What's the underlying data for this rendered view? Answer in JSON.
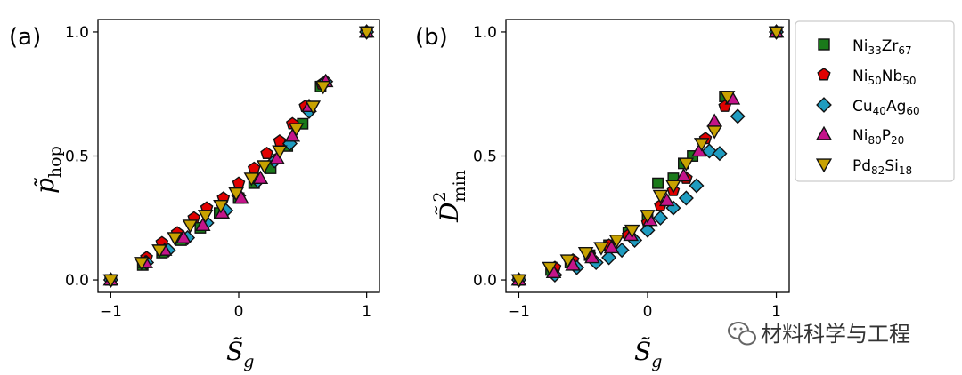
{
  "chart_data": [
    {
      "type": "scatter",
      "panel_label": "(a)",
      "xlabel": "S̃",
      "xlabel_sub": "g",
      "ylabel": "p̃",
      "ylabel_sub": "hop",
      "xlim": [
        -1.1,
        1.1
      ],
      "ylim": [
        -0.05,
        1.05
      ],
      "xticks": [
        "-1",
        "0",
        "1"
      ],
      "yticks": [
        "0.0",
        "0.5",
        "1.0"
      ],
      "series": [
        {
          "name": "Ni33Zr67",
          "marker": "square",
          "color": "#1a7a1a",
          "points": [
            [
              -1.0,
              0.0
            ],
            [
              -0.75,
              0.06
            ],
            [
              -0.6,
              0.11
            ],
            [
              -0.45,
              0.16
            ],
            [
              -0.3,
              0.21
            ],
            [
              -0.15,
              0.27
            ],
            [
              0.0,
              0.33
            ],
            [
              0.12,
              0.39
            ],
            [
              0.25,
              0.45
            ],
            [
              0.38,
              0.54
            ],
            [
              0.5,
              0.63
            ],
            [
              0.64,
              0.78
            ],
            [
              1.0,
              1.0
            ]
          ]
        },
        {
          "name": "Ni50Nb50",
          "marker": "pentagon",
          "color": "#e00000",
          "points": [
            [
              -1.0,
              0.0
            ],
            [
              -0.72,
              0.09
            ],
            [
              -0.6,
              0.15
            ],
            [
              -0.48,
              0.19
            ],
            [
              -0.35,
              0.25
            ],
            [
              -0.25,
              0.29
            ],
            [
              -0.12,
              0.33
            ],
            [
              0.0,
              0.39
            ],
            [
              0.12,
              0.45
            ],
            [
              0.22,
              0.51
            ],
            [
              0.32,
              0.56
            ],
            [
              0.42,
              0.63
            ],
            [
              0.52,
              0.7
            ],
            [
              0.65,
              0.79
            ],
            [
              1.0,
              1.0
            ]
          ]
        },
        {
          "name": "Cu40Ag60",
          "marker": "diamond",
          "color": "#1f9cc0",
          "points": [
            [
              -1.0,
              0.0
            ],
            [
              -0.72,
              0.07
            ],
            [
              -0.55,
              0.12
            ],
            [
              -0.4,
              0.17
            ],
            [
              -0.25,
              0.23
            ],
            [
              -0.1,
              0.28
            ],
            [
              0.0,
              0.34
            ],
            [
              0.15,
              0.4
            ],
            [
              0.28,
              0.48
            ],
            [
              0.4,
              0.55
            ],
            [
              0.55,
              0.68
            ],
            [
              0.68,
              0.8
            ],
            [
              1.0,
              1.0
            ]
          ]
        },
        {
          "name": "Ni80P20",
          "marker": "triangle-up",
          "color": "#c4148a",
          "points": [
            [
              -1.0,
              0.0
            ],
            [
              -0.73,
              0.07
            ],
            [
              -0.58,
              0.12
            ],
            [
              -0.43,
              0.17
            ],
            [
              -0.28,
              0.22
            ],
            [
              -0.13,
              0.27
            ],
            [
              0.02,
              0.33
            ],
            [
              0.17,
              0.41
            ],
            [
              0.3,
              0.49
            ],
            [
              0.42,
              0.58
            ],
            [
              0.55,
              0.7
            ],
            [
              0.68,
              0.8
            ],
            [
              1.0,
              1.0
            ]
          ]
        },
        {
          "name": "Pd82Si18",
          "marker": "triangle-down",
          "color": "#c8a200",
          "points": [
            [
              -1.0,
              0.0
            ],
            [
              -0.76,
              0.07
            ],
            [
              -0.62,
              0.12
            ],
            [
              -0.5,
              0.17
            ],
            [
              -0.38,
              0.22
            ],
            [
              -0.26,
              0.26
            ],
            [
              -0.14,
              0.3
            ],
            [
              -0.02,
              0.35
            ],
            [
              0.1,
              0.41
            ],
            [
              0.2,
              0.46
            ],
            [
              0.32,
              0.52
            ],
            [
              0.45,
              0.61
            ],
            [
              0.58,
              0.7
            ],
            [
              0.66,
              0.78
            ],
            [
              1.0,
              1.0
            ]
          ]
        }
      ]
    },
    {
      "type": "scatter",
      "panel_label": "(b)",
      "xlabel": "S̃",
      "xlabel_sub": "g",
      "ylabel": "D̃",
      "ylabel_sub": "min",
      "ylabel_sup": "2",
      "xlim": [
        -1.1,
        1.1
      ],
      "ylim": [
        -0.05,
        1.05
      ],
      "xticks": [
        "-1",
        "0",
        "1"
      ],
      "yticks": [
        "0.0",
        "0.5",
        "1.0"
      ],
      "series": [
        {
          "name": "Ni33Zr67",
          "marker": "square",
          "color": "#1a7a1a",
          "points": [
            [
              -1.0,
              0.0
            ],
            [
              -0.75,
              0.04
            ],
            [
              -0.6,
              0.07
            ],
            [
              -0.45,
              0.1
            ],
            [
              -0.3,
              0.14
            ],
            [
              -0.15,
              0.19
            ],
            [
              0.0,
              0.25
            ],
            [
              0.08,
              0.39
            ],
            [
              0.2,
              0.41
            ],
            [
              0.28,
              0.47
            ],
            [
              0.35,
              0.5
            ],
            [
              0.6,
              0.74
            ],
            [
              1.0,
              1.0
            ]
          ]
        },
        {
          "name": "Ni50Nb50",
          "marker": "pentagon",
          "color": "#e00000",
          "points": [
            [
              -1.0,
              0.0
            ],
            [
              -0.72,
              0.05
            ],
            [
              -0.58,
              0.08
            ],
            [
              -0.45,
              0.1
            ],
            [
              -0.3,
              0.14
            ],
            [
              -0.15,
              0.18
            ],
            [
              0.0,
              0.23
            ],
            [
              0.1,
              0.3
            ],
            [
              0.2,
              0.36
            ],
            [
              0.3,
              0.41
            ],
            [
              0.45,
              0.57
            ],
            [
              0.6,
              0.7
            ],
            [
              1.0,
              1.0
            ]
          ]
        },
        {
          "name": "Cu40Ag60",
          "marker": "diamond",
          "color": "#1f9cc0",
          "points": [
            [
              -1.0,
              0.0
            ],
            [
              -0.72,
              0.02
            ],
            [
              -0.55,
              0.05
            ],
            [
              -0.4,
              0.07
            ],
            [
              -0.3,
              0.09
            ],
            [
              -0.2,
              0.12
            ],
            [
              -0.1,
              0.16
            ],
            [
              0.0,
              0.2
            ],
            [
              0.1,
              0.25
            ],
            [
              0.2,
              0.29
            ],
            [
              0.3,
              0.33
            ],
            [
              0.38,
              0.38
            ],
            [
              0.48,
              0.52
            ],
            [
              0.56,
              0.51
            ],
            [
              0.7,
              0.66
            ],
            [
              1.0,
              1.0
            ]
          ]
        },
        {
          "name": "Ni80P20",
          "marker": "triangle-up",
          "color": "#c4148a",
          "points": [
            [
              -1.0,
              0.0
            ],
            [
              -0.73,
              0.03
            ],
            [
              -0.58,
              0.06
            ],
            [
              -0.43,
              0.09
            ],
            [
              -0.28,
              0.13
            ],
            [
              -0.13,
              0.18
            ],
            [
              0.02,
              0.24
            ],
            [
              0.15,
              0.32
            ],
            [
              0.28,
              0.42
            ],
            [
              0.4,
              0.52
            ],
            [
              0.52,
              0.64
            ],
            [
              0.66,
              0.73
            ],
            [
              1.0,
              1.0
            ]
          ]
        },
        {
          "name": "Pd82Si18",
          "marker": "triangle-down",
          "color": "#c8a200",
          "points": [
            [
              -1.0,
              0.0
            ],
            [
              -0.76,
              0.05
            ],
            [
              -0.62,
              0.08
            ],
            [
              -0.48,
              0.11
            ],
            [
              -0.36,
              0.13
            ],
            [
              -0.24,
              0.16
            ],
            [
              -0.12,
              0.2
            ],
            [
              0.0,
              0.26
            ],
            [
              0.1,
              0.34
            ],
            [
              0.2,
              0.38
            ],
            [
              0.3,
              0.47
            ],
            [
              0.42,
              0.55
            ],
            [
              0.52,
              0.6
            ],
            [
              0.62,
              0.74
            ],
            [
              1.0,
              1.0
            ]
          ]
        }
      ]
    }
  ],
  "legend": {
    "placement": "right",
    "entries": [
      {
        "base": "Ni",
        "sub1": "33",
        "base2": "Zr",
        "sub2": "67"
      },
      {
        "base": "Ni",
        "sub1": "50",
        "base2": "Nb",
        "sub2": "50"
      },
      {
        "base": "Cu",
        "sub1": "40",
        "base2": "Ag",
        "sub2": "60"
      },
      {
        "base": "Ni",
        "sub1": "80",
        "base2": "P",
        "sub2": "20"
      },
      {
        "base": "Pd",
        "sub1": "82",
        "base2": "Si",
        "sub2": "18"
      }
    ]
  },
  "watermark": {
    "text": "材料科学与工程",
    "icon": "wechat-icon"
  }
}
